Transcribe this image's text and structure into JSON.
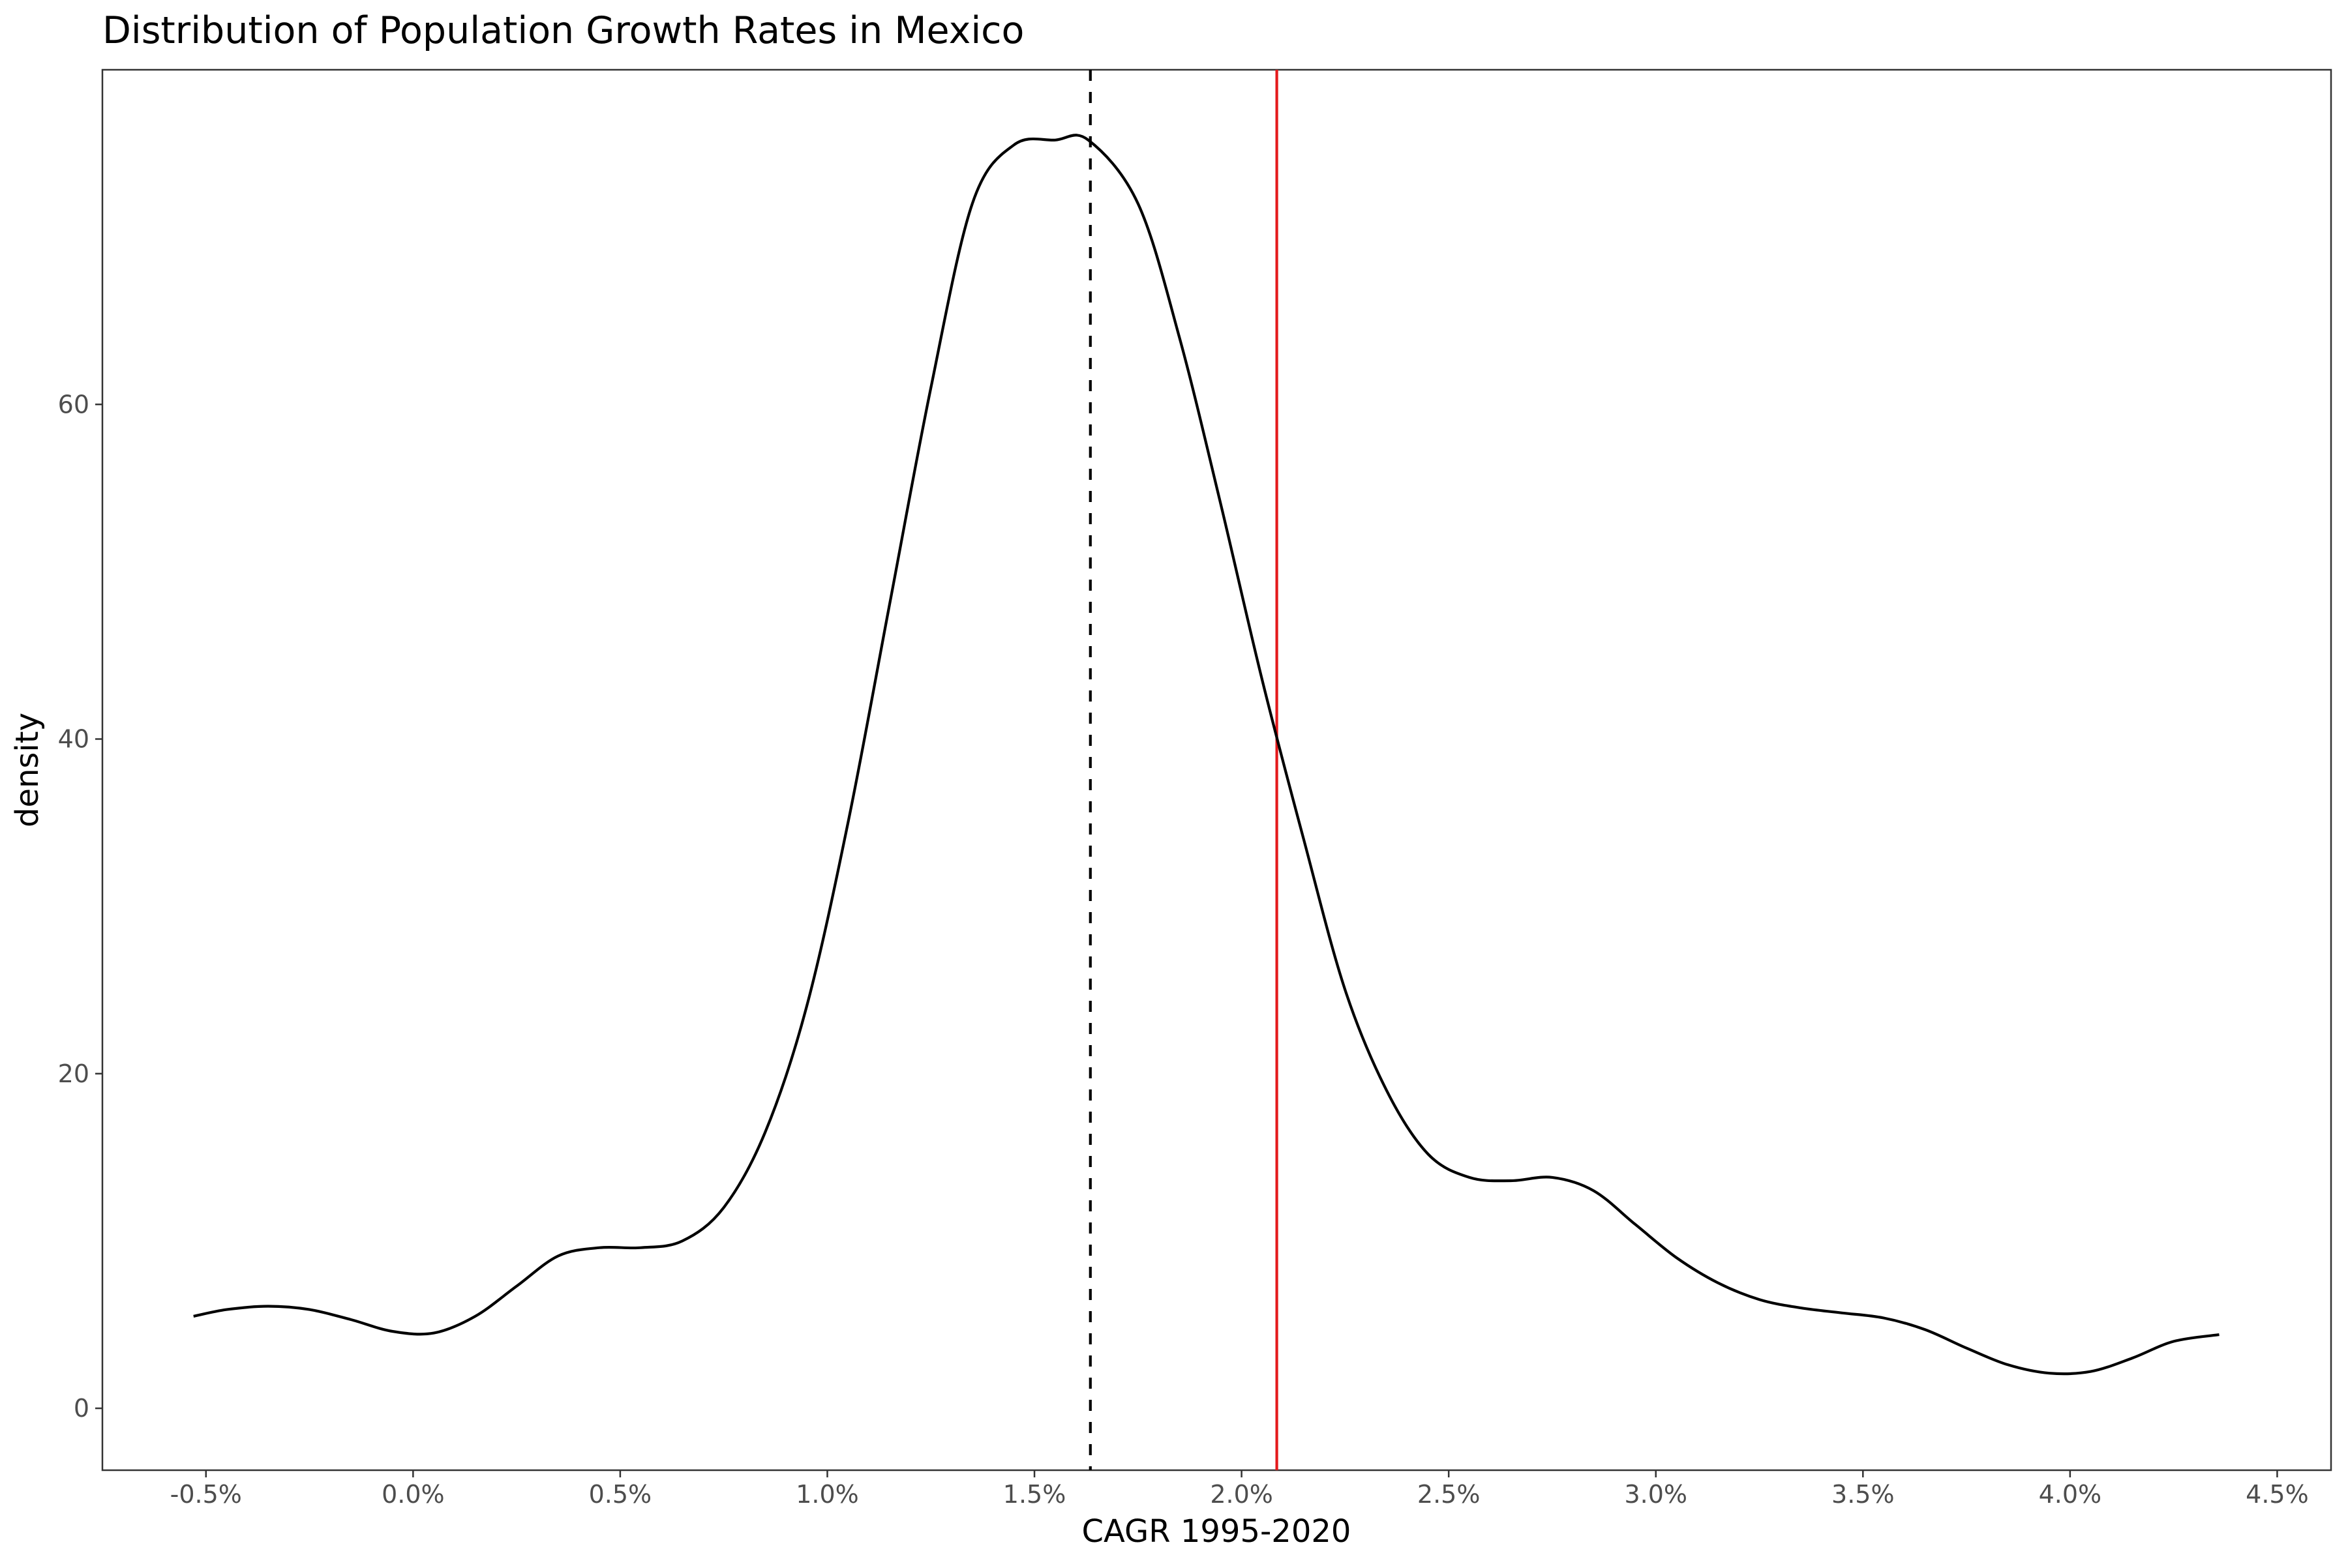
{
  "chart_data": {
    "type": "line",
    "title": "Distribution of Population Growth Rates in Mexico",
    "xlabel": "CAGR 1995-2020",
    "ylabel": "density",
    "xlim": [
      -0.0075,
      0.0463
    ],
    "ylim": [
      -3.7,
      80
    ],
    "x_ticks": [
      -0.005,
      0.0,
      0.005,
      0.01,
      0.015,
      0.02,
      0.025,
      0.03,
      0.035,
      0.04,
      0.045
    ],
    "x_tick_labels": [
      "-0.5%",
      "0.0%",
      "0.5%",
      "1.0%",
      "1.5%",
      "2.0%",
      "2.5%",
      "3.0%",
      "3.5%",
      "4.0%",
      "4.5%"
    ],
    "y_ticks": [
      0,
      20,
      40,
      60
    ],
    "y_tick_labels": [
      "0",
      "20",
      "40",
      "60"
    ],
    "grid": false,
    "series": [
      {
        "color": "#000000",
        "x": [
          -0.0053,
          -0.0045,
          -0.0035,
          -0.0025,
          -0.0015,
          -0.0005,
          0.0005,
          0.0015,
          0.0025,
          0.0035,
          0.0045,
          0.0055,
          0.0065,
          0.0075,
          0.0085,
          0.0095,
          0.0105,
          0.0115,
          0.0125,
          0.0135,
          0.0145,
          0.0155,
          0.0163,
          0.0175,
          0.0185,
          0.0195,
          0.0205,
          0.0215,
          0.0225,
          0.0235,
          0.0245,
          0.0255,
          0.0265,
          0.0275,
          0.0285,
          0.0295,
          0.0305,
          0.0315,
          0.0325,
          0.0335,
          0.0345,
          0.0355,
          0.0365,
          0.0375,
          0.0385,
          0.0395,
          0.0405,
          0.0415,
          0.0425,
          0.0436
        ],
        "y": [
          5.5,
          5.9,
          6.1,
          5.9,
          5.3,
          4.6,
          4.5,
          5.5,
          7.3,
          9.1,
          9.6,
          9.6,
          10.0,
          12.0,
          16.5,
          24.0,
          35.0,
          48.0,
          61.0,
          72.0,
          75.5,
          75.8,
          75.8,
          72.0,
          64.0,
          54.0,
          43.5,
          34.0,
          25.0,
          19.0,
          15.2,
          13.8,
          13.6,
          13.8,
          13.0,
          11.0,
          9.0,
          7.5,
          6.5,
          6.0,
          5.7,
          5.4,
          4.7,
          3.6,
          2.6,
          2.1,
          2.2,
          3.0,
          4.0,
          4.4
        ]
      }
    ],
    "reference_lines": [
      {
        "x": 0.01635,
        "color": "#000000",
        "style": "dashed"
      },
      {
        "x": 0.02085,
        "color": "#e41a1c",
        "style": "solid"
      }
    ]
  }
}
